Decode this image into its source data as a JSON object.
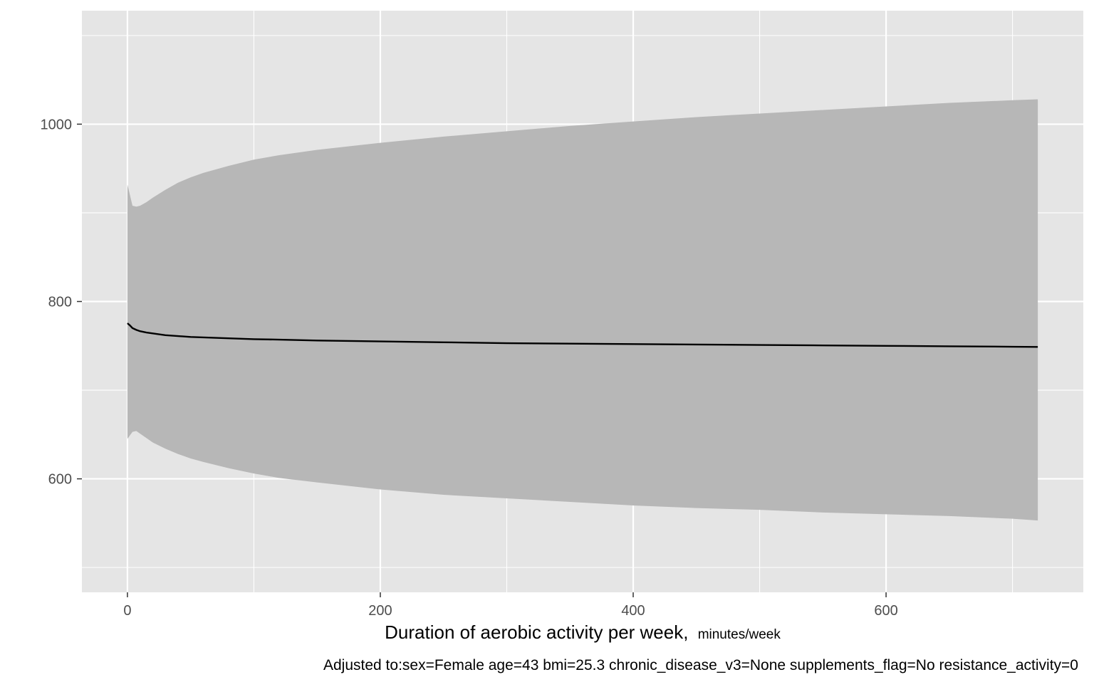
{
  "chart_data": {
    "type": "line",
    "title": "",
    "xlabel": "Duration of aerobic activity per week,",
    "xlabel_unit": "minutes/week",
    "ylabel": "",
    "caption": "Adjusted to:sex=Female age=43 bmi=25.3 chronic_disease_v3=None supplements_flag=No resistance_activity=0",
    "xlim": [
      -36,
      756
    ],
    "ylim": [
      472,
      1128
    ],
    "x_ticks": [
      0,
      200,
      400,
      600
    ],
    "y_ticks": [
      600,
      800,
      1000
    ],
    "x_tick_labels": [
      "0",
      "200",
      "400",
      "600"
    ],
    "y_tick_labels": [
      "600",
      "800",
      "1000"
    ],
    "x_minor_grid": [
      100,
      300,
      500,
      700
    ],
    "y_minor_grid": [
      500,
      700,
      900,
      1100
    ],
    "grid": true,
    "legend": "none",
    "series": [
      {
        "x": [
          0,
          2,
          4,
          7,
          10,
          15,
          20,
          30,
          40,
          50,
          60,
          80,
          100,
          120,
          150,
          200,
          250,
          300,
          350,
          400,
          450,
          500,
          550,
          600,
          650,
          700,
          720
        ],
        "y": [
          775.5,
          773,
          770,
          768,
          766.5,
          765,
          764,
          762,
          761,
          760,
          759.5,
          758.5,
          757.5,
          757,
          756,
          755,
          754,
          753,
          752.5,
          752,
          751.5,
          751,
          750.5,
          750,
          749.5,
          749,
          748.8
        ],
        "lower": [
          645,
          649,
          653,
          654,
          651,
          646,
          641,
          634,
          628,
          623,
          619,
          612,
          606,
          601,
          596,
          588,
          582,
          578,
          574,
          570,
          567,
          565,
          562,
          560,
          558,
          555,
          553
        ],
        "upper": [
          932,
          920,
          908,
          907,
          908,
          912,
          917,
          926,
          934,
          940,
          945,
          953,
          960,
          965,
          971,
          979,
          986,
          992,
          998,
          1003,
          1008,
          1012,
          1016,
          1020,
          1024,
          1027,
          1028
        ]
      }
    ],
    "colors": {
      "panel_background": "#e5e5e5",
      "grid_line": "#ffffff",
      "ribbon": "#b7b7b7",
      "line": "#000000",
      "tick_mark": "#333333",
      "tick_label": "#4d4d4d"
    }
  }
}
